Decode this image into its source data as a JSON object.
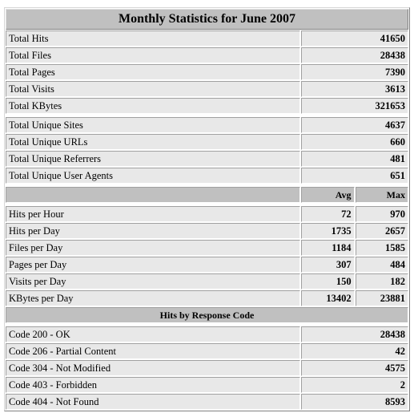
{
  "title": "Monthly Statistics for June 2007",
  "totals": [
    {
      "label": "Total Hits",
      "value": "41650"
    },
    {
      "label": "Total Files",
      "value": "28438"
    },
    {
      "label": "Total Pages",
      "value": "7390"
    },
    {
      "label": "Total Visits",
      "value": "3613"
    },
    {
      "label": "Total KBytes",
      "value": "321653"
    }
  ],
  "uniques": [
    {
      "label": "Total Unique Sites",
      "value": "4637"
    },
    {
      "label": "Total Unique URLs",
      "value": "660"
    },
    {
      "label": "Total Unique Referrers",
      "value": "481"
    },
    {
      "label": "Total Unique User Agents",
      "value": "651"
    }
  ],
  "avg_max_header": {
    "avg": "Avg",
    "max": "Max"
  },
  "rates": [
    {
      "label": "Hits per Hour",
      "avg": "72",
      "max": "970"
    },
    {
      "label": "Hits per Day",
      "avg": "1735",
      "max": "2657"
    },
    {
      "label": "Files per Day",
      "avg": "1184",
      "max": "1585"
    },
    {
      "label": "Pages per Day",
      "avg": "307",
      "max": "484"
    },
    {
      "label": "Visits per Day",
      "avg": "150",
      "max": "182"
    },
    {
      "label": "KBytes per Day",
      "avg": "13402",
      "max": "23881"
    }
  ],
  "response_header": "Hits by Response Code",
  "responses": [
    {
      "label": "Code 200 - OK",
      "value": "28438"
    },
    {
      "label": "Code 206 - Partial Content",
      "value": "42"
    },
    {
      "label": "Code 304 - Not Modified",
      "value": "4575"
    },
    {
      "label": "Code 403 - Forbidden",
      "value": "2"
    },
    {
      "label": "Code 404 - Not Found",
      "value": "8593"
    }
  ]
}
